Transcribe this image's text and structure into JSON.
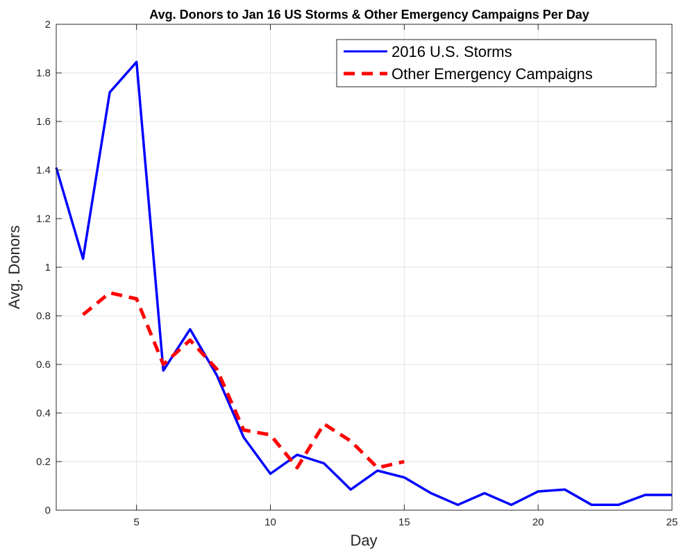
{
  "chart_data": {
    "type": "line",
    "title": "Avg. Donors to Jan 16 US Storms & Other Emergency Campaigns Per Day",
    "xlabel": "Day",
    "ylabel": "Avg. Donors",
    "xlim": [
      2,
      25
    ],
    "ylim": [
      0,
      2
    ],
    "xticks": [
      5,
      10,
      15,
      20,
      25
    ],
    "yticks": [
      0,
      0.2,
      0.4,
      0.6,
      0.8,
      1,
      1.2,
      1.4,
      1.6,
      1.8,
      2
    ],
    "ytick_labels": [
      "0",
      "0.2",
      "0.4",
      "0.6",
      "0.8",
      "1",
      "1.2",
      "1.4",
      "1.6",
      "1.8",
      "2"
    ],
    "grid": true,
    "legend_position": "top-right",
    "series": [
      {
        "name": "2016 U.S. Storms",
        "color": "#0000ff",
        "style": "solid",
        "x": [
          2,
          3,
          4,
          5,
          6,
          7,
          8,
          9,
          10,
          11,
          12,
          13,
          14,
          15,
          16,
          17,
          18,
          19,
          20,
          21,
          22,
          23,
          24,
          25
        ],
        "y": [
          1.41,
          1.035,
          1.72,
          1.845,
          0.575,
          0.745,
          0.555,
          0.3,
          0.15,
          0.228,
          0.193,
          0.085,
          0.163,
          0.135,
          0.07,
          0.022,
          0.07,
          0.022,
          0.077,
          0.085,
          0.022,
          0.022,
          0.063,
          0.063
        ]
      },
      {
        "name": "Other Emergency Campaigns",
        "color": "#ff0000",
        "style": "dashed",
        "x": [
          3,
          4,
          5,
          6,
          7,
          8,
          9,
          10,
          11,
          12,
          13,
          14,
          15
        ],
        "y": [
          0.805,
          0.895,
          0.87,
          0.6,
          0.7,
          0.58,
          0.33,
          0.31,
          0.175,
          0.355,
          0.285,
          0.175,
          0.2
        ]
      }
    ]
  }
}
